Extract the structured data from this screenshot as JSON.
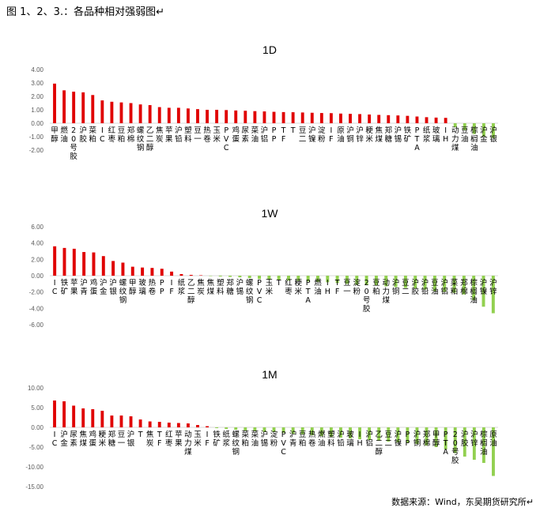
{
  "caption": "图 1、2、3.：各品种相对强弱图↵",
  "source": "数据来源：Wind，东吴期货研究所↵",
  "colors": {
    "positive": "#e00000",
    "negative": "#92d050",
    "axis": "#d9d9d9",
    "tick": "#595959"
  },
  "chart_data": [
    {
      "type": "bar",
      "title": "1D",
      "ylim": [
        -2,
        4
      ],
      "yticks": [
        "4.00",
        "3.00",
        "2.00",
        "1.00",
        "0.00",
        "-1.00",
        "-2.00"
      ],
      "grid": false,
      "categories": [
        "甲醇",
        "燃油",
        "20号胶",
        "沪胶",
        "菜粕",
        "IC",
        "红枣",
        "豆粕",
        "郑棉",
        "螺纹钢",
        "乙二醇",
        "焦炭",
        "苹果",
        "沪铅",
        "塑料",
        "豆一",
        "热卷",
        "玉米",
        "PVC",
        "鸡蛋",
        "尿素",
        "菜油",
        "沪铝",
        "PP",
        "TF",
        "T",
        "豆二",
        "沪镍",
        "淀粉",
        "IF",
        "原油",
        "沪铜",
        "沪锌",
        "粳米",
        "焦煤",
        "郑糖",
        "沪锡",
        "铁矿",
        "PTA",
        "纸浆",
        "玻璃",
        "IH",
        "动力煤",
        "豆油",
        "棕榈油",
        "沪金",
        "沪银"
      ],
      "values": [
        2.95,
        2.45,
        2.35,
        2.3,
        2.1,
        1.7,
        1.6,
        1.55,
        1.5,
        1.4,
        1.35,
        1.2,
        1.15,
        1.15,
        1.1,
        1.05,
        1.0,
        1.0,
        0.98,
        0.95,
        0.93,
        0.9,
        0.88,
        0.85,
        0.83,
        0.82,
        0.8,
        0.78,
        0.76,
        0.75,
        0.72,
        0.7,
        0.68,
        0.65,
        0.62,
        0.6,
        0.58,
        0.55,
        0.5,
        0.45,
        0.42,
        0.4,
        -0.3,
        -0.5,
        -0.8,
        -1.0,
        -1.1
      ]
    },
    {
      "type": "bar",
      "title": "1W",
      "ylim": [
        -6,
        6
      ],
      "yticks": [
        "6.00",
        "4.00",
        "2.00",
        "0.00",
        "-2.00",
        "-4.00",
        "-6.00"
      ],
      "grid": false,
      "categories": [
        "IC",
        "铁矿",
        "苹果",
        "沪青",
        "鸡蛋",
        "沪金",
        "沪银",
        "螺纹钢",
        "甲醇",
        "玻璃",
        "热卷",
        "PP",
        "IF",
        "纸浆",
        "乙二醇",
        "焦炭",
        "焦煤",
        "塑料",
        "郑糖",
        "沪锡",
        "螺纹钢",
        "PVC",
        "玉米",
        "T",
        "红枣",
        "粳米",
        "PTA",
        "燃油",
        "IH",
        "TF",
        "豆一",
        "淀粉",
        "20号胶",
        "豆粕",
        "动力煤",
        "沪铜",
        "豆二",
        "沪胶",
        "沪铅",
        "豆油",
        "沪铝",
        "菜粕",
        "郑棉",
        "棕榈油",
        "沪镍",
        "沪锌"
      ],
      "values": [
        3.6,
        3.4,
        3.3,
        2.9,
        2.85,
        2.4,
        1.8,
        1.6,
        1.1,
        1.0,
        0.95,
        0.85,
        0.5,
        0.2,
        0.1,
        0.05,
        -0.05,
        -0.1,
        -0.15,
        -0.2,
        -0.3,
        -0.4,
        -0.5,
        -0.55,
        -0.6,
        -0.65,
        -0.7,
        -0.75,
        -0.8,
        -0.9,
        -1.0,
        -1.1,
        -1.15,
        -1.2,
        -1.3,
        -1.4,
        -1.5,
        -1.6,
        -1.7,
        -1.9,
        -2.0,
        -2.1,
        -2.3,
        -3.0,
        -3.8,
        -4.6
      ]
    },
    {
      "type": "bar",
      "title": "1M",
      "ylim": [
        -15,
        10
      ],
      "yticks": [
        "10.00",
        "5.00",
        "0.00",
        "-5.00",
        "-10.00",
        "-15.00"
      ],
      "grid": false,
      "categories": [
        "IC",
        "沪金",
        "尿素",
        "焦煤",
        "鸡蛋",
        "粳米",
        "郑糖",
        "豆一",
        "沪银",
        "T",
        "焦炭",
        "TF",
        "红枣",
        "苹果",
        "动力煤",
        "玉米",
        "IF",
        "铁矿",
        "纸浆",
        "螺纹钢",
        "菜粕",
        "菜油",
        "沪锡",
        "淀粉",
        "PVC",
        "沪青",
        "豆粕",
        "热卷",
        "燃油",
        "塑料",
        "沪铅",
        "玻璃",
        "IH",
        "沪铝",
        "乙二醇",
        "豆二",
        "沪镍",
        "PP",
        "沪铜",
        "郑棉",
        "甲醇",
        "PTA",
        "20号胶",
        "沪胶",
        "沪锌",
        "棕榈油",
        "原油"
      ],
      "values": [
        6.8,
        6.6,
        5.5,
        4.8,
        4.6,
        4.2,
        3.0,
        3.0,
        2.8,
        2.0,
        1.5,
        1.4,
        1.2,
        1.1,
        1.0,
        0.6,
        0.3,
        -0.2,
        -0.4,
        -0.6,
        -0.8,
        -1.0,
        -1.1,
        -1.2,
        -1.4,
        -1.6,
        -1.8,
        -2.0,
        -2.2,
        -2.4,
        -2.6,
        -2.8,
        -3.0,
        -3.2,
        -3.4,
        -3.6,
        -3.8,
        -4.0,
        -4.2,
        -4.6,
        -5.0,
        -5.6,
        -6.5,
        -7.4,
        -8.2,
        -9.0,
        -12.3
      ]
    }
  ]
}
